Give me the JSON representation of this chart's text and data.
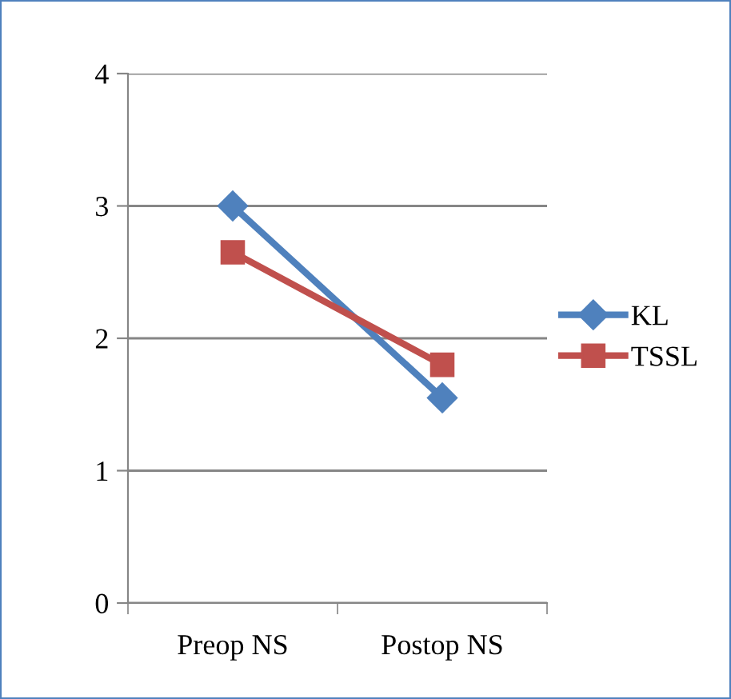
{
  "chart_data": {
    "type": "line",
    "categories": [
      "Preop NS",
      "Postop NS"
    ],
    "series": [
      {
        "name": "KL",
        "color": "#4f81bd",
        "values": [
          3,
          1.55
        ],
        "marker": "diamond"
      },
      {
        "name": "TSSL",
        "color": "#c0504d",
        "values": [
          2.65,
          1.8
        ],
        "marker": "square"
      }
    ],
    "ylim": [
      0,
      4
    ],
    "yticks": [
      0,
      1,
      2,
      3,
      4
    ],
    "grid": "y",
    "legend": "right",
    "line_style": "solid"
  }
}
